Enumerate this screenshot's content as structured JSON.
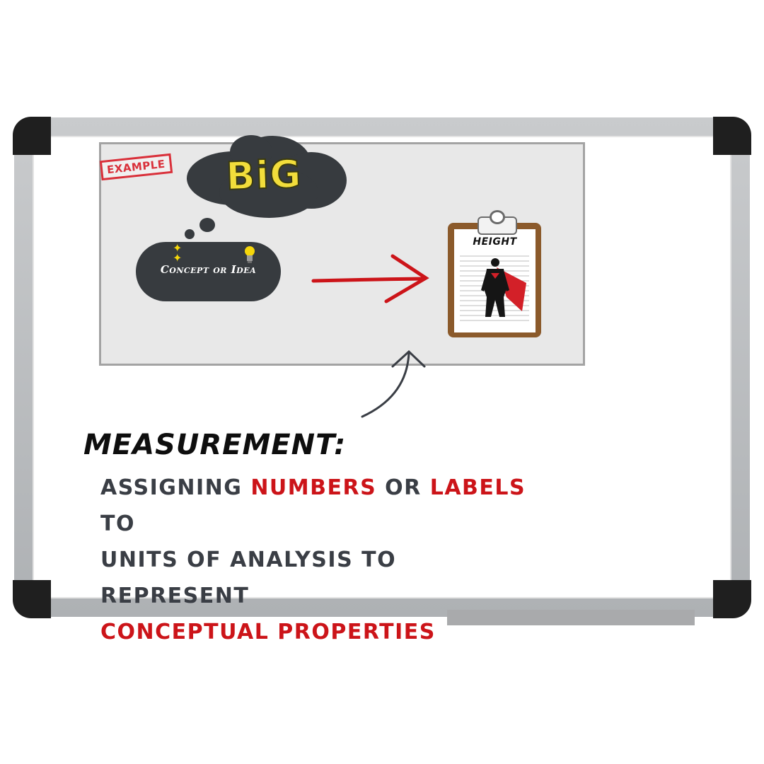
{
  "stamp": {
    "label": "EXAMPLE"
  },
  "thought": {
    "big_label": "BiG"
  },
  "idea": {
    "label": "Concept or Idea"
  },
  "clipboard": {
    "title": "HEIGHT"
  },
  "definition": {
    "term": "MEASUREMENT:",
    "line1_a": "ASSIGNING ",
    "line1_b": "NUMBERS",
    "line1_c": " OR ",
    "line1_d": "LABELS",
    "line1_e": " TO",
    "line2": "UNITS OF ANALYSIS TO REPRESENT",
    "line3": "CONCEPTUAL PROPERTIES"
  },
  "colors": {
    "accent_red": "#cc1419",
    "bubble_dark": "#373b3f",
    "big_yellow": "#f2dd3b",
    "clipboard_brown": "#8b5a2b",
    "text_dark": "#3a3e45"
  },
  "icons": [
    "sparkles-icon",
    "lightbulb-icon",
    "superhero-silhouette-icon",
    "arrow-right-icon",
    "curved-arrow-up-icon"
  ]
}
